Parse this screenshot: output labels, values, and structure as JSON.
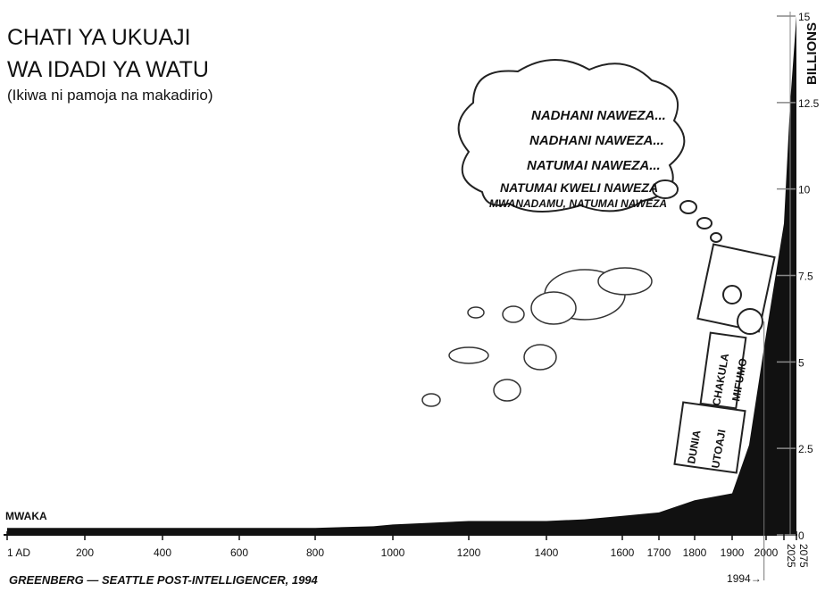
{
  "chart_data": {
    "type": "area",
    "title": [
      "CHATI YA UKUAJI",
      "WA IDADI YA WATU"
    ],
    "subtitle": "(Ikiwa ni pamoja na makadirio)",
    "ylabel": "BILLIONS",
    "xlabel": "MWAKA",
    "x": [
      1,
      200,
      400,
      600,
      800,
      950,
      1000,
      1200,
      1400,
      1500,
      1600,
      1700,
      1800,
      1900,
      1950,
      2000,
      2025,
      2050,
      2075
    ],
    "series": [
      {
        "name": "Idadi ya watu",
        "color": "#111111",
        "values": [
          0.2,
          0.2,
          0.2,
          0.2,
          0.2,
          0.25,
          0.3,
          0.4,
          0.4,
          0.45,
          0.55,
          0.65,
          1.0,
          1.2,
          2.6,
          5.8,
          9,
          12.5,
          15
        ]
      }
    ],
    "xticks": [
      {
        "value": 1,
        "label": "1 AD"
      },
      200,
      400,
      600,
      800,
      1000,
      1200,
      1400,
      1600,
      1700,
      1800,
      1900,
      2000,
      2025,
      2075
    ],
    "ylim": [
      0,
      15
    ],
    "yticks": [
      0,
      2.5,
      5,
      7.5,
      10,
      12.5,
      15
    ],
    "annotations": [
      {
        "text": "1994→",
        "x": 1994
      }
    ],
    "thought": [
      "NADHANI NAWEZA...",
      "NADHANI NAWEZA...",
      "NATUMAI NAWEZA...",
      "NATUMAI KWELI NAWEZA",
      "MWANADAMU, NATUMAI NAWEZA"
    ],
    "cars": [
      "CHAKULA",
      "MIFUMO",
      "DUNIA",
      "UTOAJI"
    ],
    "credit": "GREENBERG — SEATTLE POST-INTELLIGENCER, 1994"
  }
}
